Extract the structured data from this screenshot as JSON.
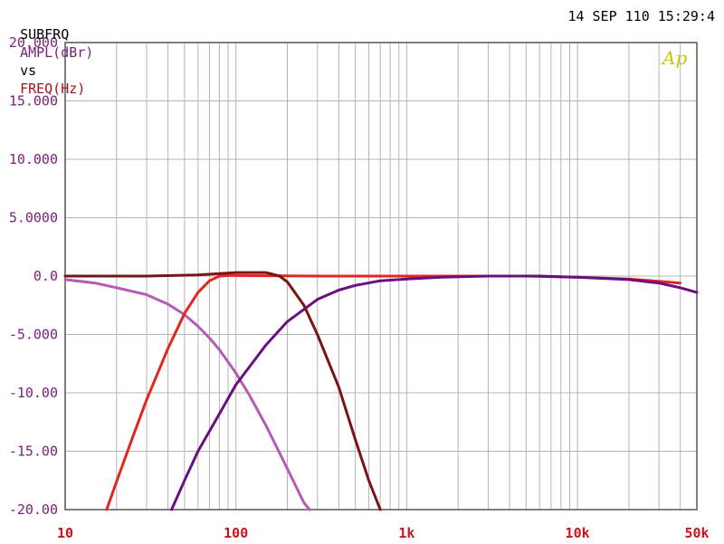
{
  "header": {
    "title_prefix": "SUBFRQ",
    "y_label": "AMPL(dBr)",
    "vs": "vs",
    "x_label": "FREQ(Hz)",
    "timestamp": "14 SEP 110 15:29:4",
    "logo": "Ap"
  },
  "colors": {
    "background": "#ffffff",
    "grid": "#b4b4b4",
    "frame": "#555555",
    "ytick_text": "#7a1f7a",
    "xtick_text": "#c8141e",
    "title_text": "#7a1f7a",
    "xlabel_text": "#a0141e",
    "logo": "#c8c80a"
  },
  "chart_data": {
    "type": "line",
    "title": "",
    "xlabel": "FREQ(Hz)",
    "ylabel": "AMPL(dBr)",
    "x_scale": "log",
    "xlim": [
      10,
      50000
    ],
    "ylim": [
      -20,
      20
    ],
    "grid": true,
    "x_ticks": [
      {
        "value": 10,
        "label": "10"
      },
      {
        "value": 100,
        "label": "100"
      },
      {
        "value": 1000,
        "label": "1k"
      },
      {
        "value": 10000,
        "label": "10k"
      },
      {
        "value": 50000,
        "label": "50k"
      }
    ],
    "y_ticks": [
      {
        "value": 20,
        "label": "20.000"
      },
      {
        "value": 15,
        "label": "15.000"
      },
      {
        "value": 10,
        "label": "10.000"
      },
      {
        "value": 5,
        "label": "5.0000"
      },
      {
        "value": 0,
        "label": "0.0"
      },
      {
        "value": -5,
        "label": "-5.000"
      },
      {
        "value": -10,
        "label": "-10.00"
      },
      {
        "value": -15,
        "label": "-15.00"
      },
      {
        "value": -20,
        "label": "-20.00"
      }
    ],
    "series": [
      {
        "color": "#b55bb5",
        "x": [
          10,
          15,
          20,
          30,
          40,
          50,
          60,
          70,
          80,
          100,
          120,
          150,
          200,
          250,
          270
        ],
        "y": [
          -0.3,
          -0.6,
          -1.0,
          -1.6,
          -2.4,
          -3.3,
          -4.3,
          -5.3,
          -6.3,
          -8.3,
          -10.2,
          -12.8,
          -16.5,
          -19.4,
          -20.0
        ]
      },
      {
        "color": "#e0281e",
        "x": [
          17.5,
          20,
          25,
          30,
          40,
          50,
          60,
          70,
          80,
          90,
          100,
          300,
          1000,
          5000,
          10000,
          20000,
          30000,
          40000
        ],
        "y": [
          -20.0,
          -17.6,
          -13.7,
          -10.6,
          -6.2,
          -3.2,
          -1.4,
          -0.4,
          0.0,
          0.05,
          0.05,
          0.0,
          0.0,
          0.0,
          -0.1,
          -0.25,
          -0.45,
          -0.6
        ]
      },
      {
        "color": "#6a0f82",
        "x": [
          42,
          50,
          60,
          80,
          100,
          150,
          200,
          300,
          400,
          500,
          700,
          1000,
          1600,
          3000,
          6000,
          10000,
          20000,
          30000,
          40000,
          50000
        ],
        "y": [
          -20.0,
          -17.5,
          -15.0,
          -11.8,
          -9.3,
          -5.9,
          -3.9,
          -2.0,
          -1.2,
          -0.8,
          -0.4,
          -0.25,
          -0.1,
          0.0,
          0.0,
          -0.1,
          -0.3,
          -0.6,
          -1.0,
          -1.4
        ]
      },
      {
        "color": "#7a1414",
        "x": [
          10,
          30,
          60,
          100,
          150,
          180,
          200,
          250,
          300,
          400,
          500,
          600,
          700
        ],
        "y": [
          0.0,
          0.0,
          0.1,
          0.3,
          0.3,
          0.0,
          -0.5,
          -2.5,
          -5.0,
          -9.5,
          -14.0,
          -17.5,
          -20.0
        ]
      }
    ]
  }
}
